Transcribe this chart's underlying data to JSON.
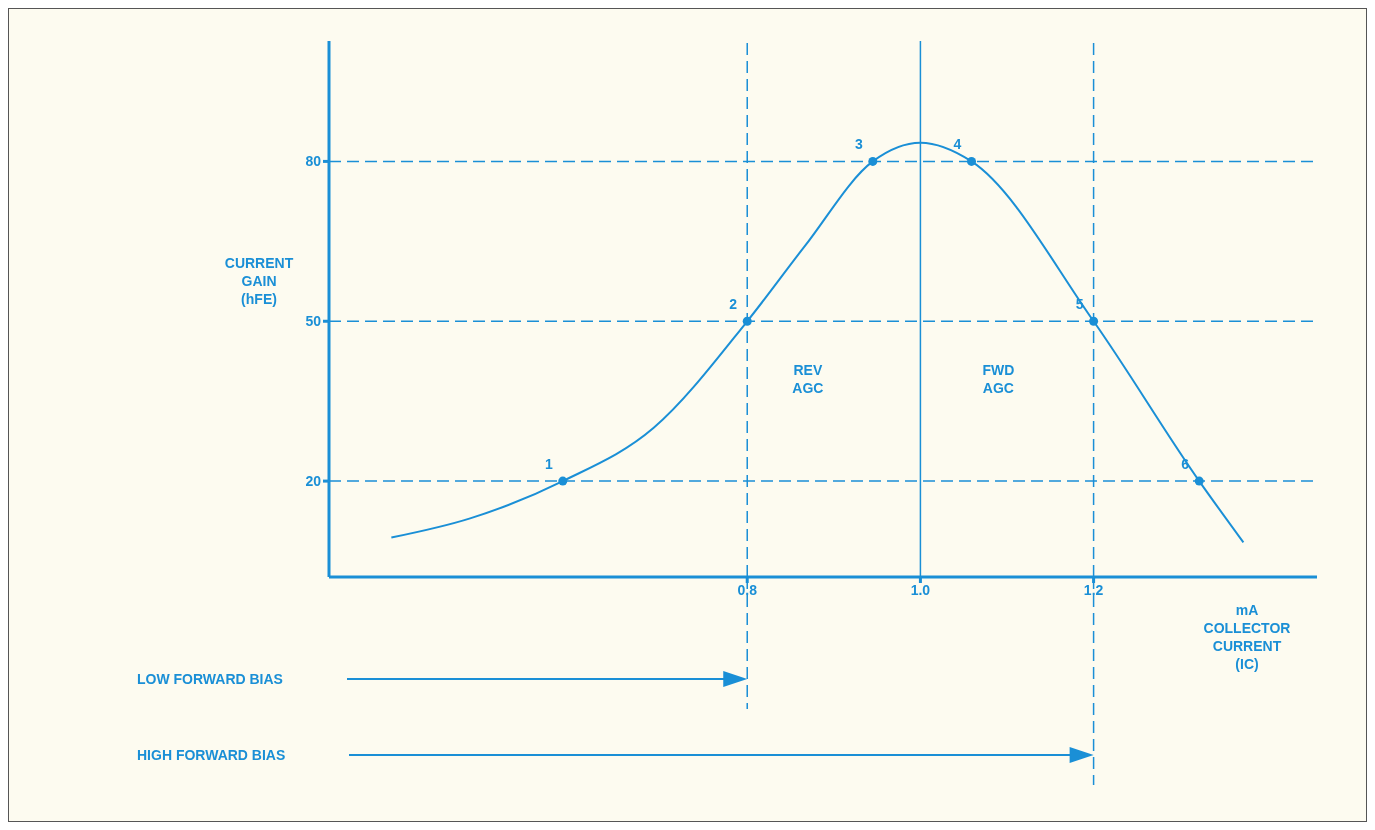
{
  "chart_data": {
    "type": "line",
    "xlabel": "mA\nCOLLECTOR\nCURRENT\n(IC)",
    "ylabel": "CURRENT\nGAIN\n(hFE)",
    "xlim": [
      0.317,
      1.458
    ],
    "ylim": [
      2,
      102.6
    ],
    "xticks": [
      0.8,
      {
        "value": 1,
        "label": "1.0"
      },
      1.2
    ],
    "yticks": [
      20,
      50,
      80
    ],
    "grid": false,
    "legend": false,
    "series": [
      {
        "type": "line",
        "color": "#1a8fd6",
        "marker": "none",
        "x": [
          0.389,
          0.48,
          0.587,
          0.692,
          0.8,
          0.866,
          0.945,
          1.0,
          1.059,
          1.2,
          1.322,
          1.373
        ],
        "values": [
          9.4,
          13,
          20,
          30,
          50,
          64,
          80,
          83.5,
          80,
          50,
          20,
          8.5
        ]
      },
      {
        "type": "scatter",
        "color": "#1a8fd6",
        "marker": "circle",
        "x": [
          0.587,
          0.8,
          0.945,
          1.059,
          1.2,
          1.322
        ],
        "values": [
          20,
          50,
          80,
          80,
          50,
          20
        ]
      }
    ],
    "ref_lines": [
      {
        "axis": "y",
        "value": 80,
        "line_style": "dashed",
        "color": "#1a8fd6"
      },
      {
        "axis": "y",
        "value": 50,
        "line_style": "dashed",
        "color": "#1a8fd6"
      },
      {
        "axis": "y",
        "value": 20,
        "line_style": "dashed",
        "color": "#1a8fd6"
      },
      {
        "axis": "x",
        "value": 0.8,
        "line_style": "dashed",
        "color": "#1a8fd6"
      },
      {
        "axis": "x",
        "value": 1,
        "line_style": "solid",
        "color": "#1a8fd6"
      },
      {
        "axis": "x",
        "value": 1.2,
        "line_style": "dashed",
        "color": "#1a8fd6"
      }
    ],
    "annotations": [
      "REV\nAGC",
      "FWD\nAGC",
      "LOW FORWARD BIAS",
      "HIGH FORWARD BIAS",
      {
        "text": "1",
        "x": 0.587,
        "y": 20
      },
      {
        "text": "2",
        "x": 0.8,
        "y": 50
      },
      {
        "text": "3",
        "x": 0.945,
        "y": 80
      },
      {
        "text": "4",
        "x": 1.059,
        "y": 80
      },
      {
        "text": "5",
        "x": 1.2,
        "y": 50
      },
      {
        "text": "6",
        "x": 1.322,
        "y": 20
      }
    ]
  }
}
